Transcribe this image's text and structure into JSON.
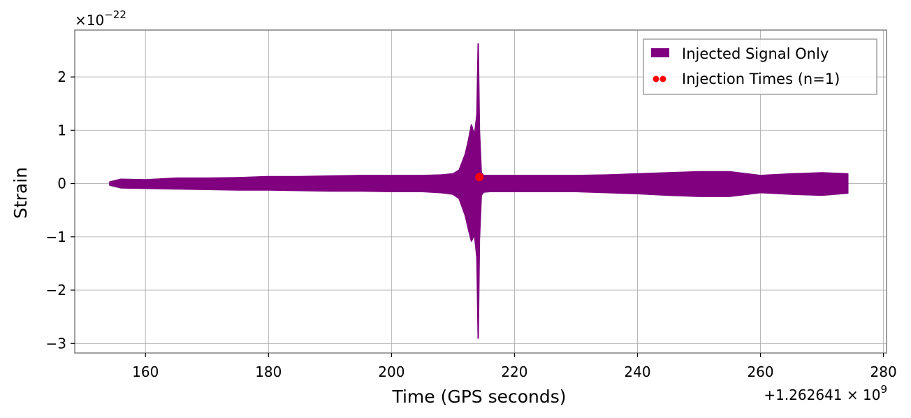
{
  "chart_data": {
    "type": "line",
    "xlabel": "Time (GPS seconds)",
    "ylabel": "Strain",
    "x_offset_label": "+1.262641 × 10",
    "x_offset_exponent": "9",
    "y_multiplier_label": "×10",
    "y_multiplier_exponent": "−22",
    "xlim": [
      148.5,
      280.5
    ],
    "ylim": [
      -3.18,
      2.88
    ],
    "x_ticks": [
      160,
      180,
      200,
      220,
      240,
      260,
      280
    ],
    "x_tick_labels": [
      "160",
      "180",
      "200",
      "220",
      "240",
      "260",
      "280"
    ],
    "y_ticks": [
      -3,
      -2,
      -1,
      0,
      1,
      2
    ],
    "y_tick_labels": [
      "−3",
      "−2",
      "−1",
      "0",
      "1",
      "2"
    ],
    "grid": true,
    "legend_position": "top-right",
    "series": [
      {
        "name": "Injected Signal Only",
        "kind": "filled-envelope",
        "color": "#800080",
        "x": [
          154.2,
          156,
          160,
          165,
          170,
          175,
          180,
          185,
          190,
          195,
          200,
          205,
          208,
          210,
          211,
          212,
          212.5,
          213,
          213.5,
          213.9,
          214.1,
          214.3,
          214.6,
          215,
          216,
          220,
          225,
          230,
          235,
          240,
          245,
          250,
          255,
          260,
          265,
          270,
          274.2
        ],
        "upper": [
          0.03,
          0.08,
          0.07,
          0.1,
          0.1,
          0.11,
          0.13,
          0.13,
          0.14,
          0.15,
          0.15,
          0.15,
          0.16,
          0.18,
          0.25,
          0.55,
          0.8,
          1.1,
          0.9,
          1.3,
          2.62,
          1.0,
          0.2,
          0.15,
          0.15,
          0.15,
          0.15,
          0.15,
          0.16,
          0.18,
          0.2,
          0.22,
          0.22,
          0.15,
          0.18,
          0.2,
          0.18
        ],
        "lower": [
          -0.03,
          -0.08,
          -0.09,
          -0.1,
          -0.11,
          -0.12,
          -0.12,
          -0.13,
          -0.14,
          -0.14,
          -0.15,
          -0.15,
          -0.17,
          -0.2,
          -0.28,
          -0.6,
          -0.85,
          -1.08,
          -0.95,
          -1.4,
          -2.9,
          -1.05,
          -0.22,
          -0.16,
          -0.15,
          -0.15,
          -0.15,
          -0.15,
          -0.17,
          -0.19,
          -0.22,
          -0.24,
          -0.24,
          -0.17,
          -0.2,
          -0.22,
          -0.18
        ]
      },
      {
        "name": "Injection Times (n=1)",
        "kind": "scatter",
        "color": "#ff0000",
        "points": [
          {
            "x": 214.3,
            "y": 0.12
          }
        ]
      }
    ]
  }
}
